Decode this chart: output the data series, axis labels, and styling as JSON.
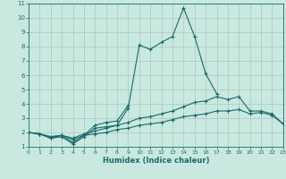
{
  "xlabel": "Humidex (Indice chaleur)",
  "xlim": [
    0,
    23
  ],
  "ylim": [
    1,
    11
  ],
  "xticks": [
    0,
    1,
    2,
    3,
    4,
    5,
    6,
    7,
    8,
    9,
    10,
    11,
    12,
    13,
    14,
    15,
    16,
    17,
    18,
    19,
    20,
    21,
    22,
    23
  ],
  "yticks": [
    1,
    2,
    3,
    4,
    5,
    6,
    7,
    8,
    9,
    10,
    11
  ],
  "bg_color": "#c8e8e0",
  "grid_color": "#aac8c0",
  "line_color": "#1a6b6b",
  "line1_x": [
    0,
    1,
    2,
    3,
    4,
    5,
    6,
    7,
    8,
    9,
    10,
    11,
    12,
    13,
    14,
    15,
    16,
    17
  ],
  "line1_y": [
    2.0,
    1.9,
    1.6,
    1.7,
    1.2,
    1.7,
    2.3,
    2.4,
    2.5,
    3.7,
    8.1,
    7.8,
    8.3,
    8.7,
    10.7,
    8.7,
    6.1,
    4.7
  ],
  "line2_x": [
    0,
    1,
    2,
    3,
    4,
    5,
    6,
    7,
    8,
    9
  ],
  "line2_y": [
    2.0,
    1.9,
    1.6,
    1.8,
    1.3,
    1.8,
    2.5,
    2.7,
    2.8,
    3.9
  ],
  "line3_x": [
    0,
    1,
    2,
    3,
    4,
    5,
    6,
    7,
    8,
    9,
    10,
    11,
    12,
    13,
    14,
    15,
    16,
    17,
    18,
    19,
    20,
    21,
    22,
    23
  ],
  "line3_y": [
    2.0,
    1.9,
    1.7,
    1.8,
    1.6,
    1.9,
    2.1,
    2.3,
    2.5,
    2.7,
    3.0,
    3.1,
    3.3,
    3.5,
    3.8,
    4.1,
    4.2,
    4.5,
    4.3,
    4.5,
    3.5,
    3.5,
    3.3,
    2.6
  ],
  "line4_x": [
    0,
    1,
    2,
    3,
    4,
    5,
    6,
    7,
    8,
    9,
    10,
    11,
    12,
    13,
    14,
    15,
    16,
    17,
    18,
    19,
    20,
    21,
    22,
    23
  ],
  "line4_y": [
    2.0,
    1.9,
    1.7,
    1.8,
    1.5,
    1.8,
    1.9,
    2.0,
    2.2,
    2.3,
    2.5,
    2.6,
    2.7,
    2.9,
    3.1,
    3.2,
    3.3,
    3.5,
    3.5,
    3.6,
    3.3,
    3.4,
    3.2,
    2.6
  ]
}
